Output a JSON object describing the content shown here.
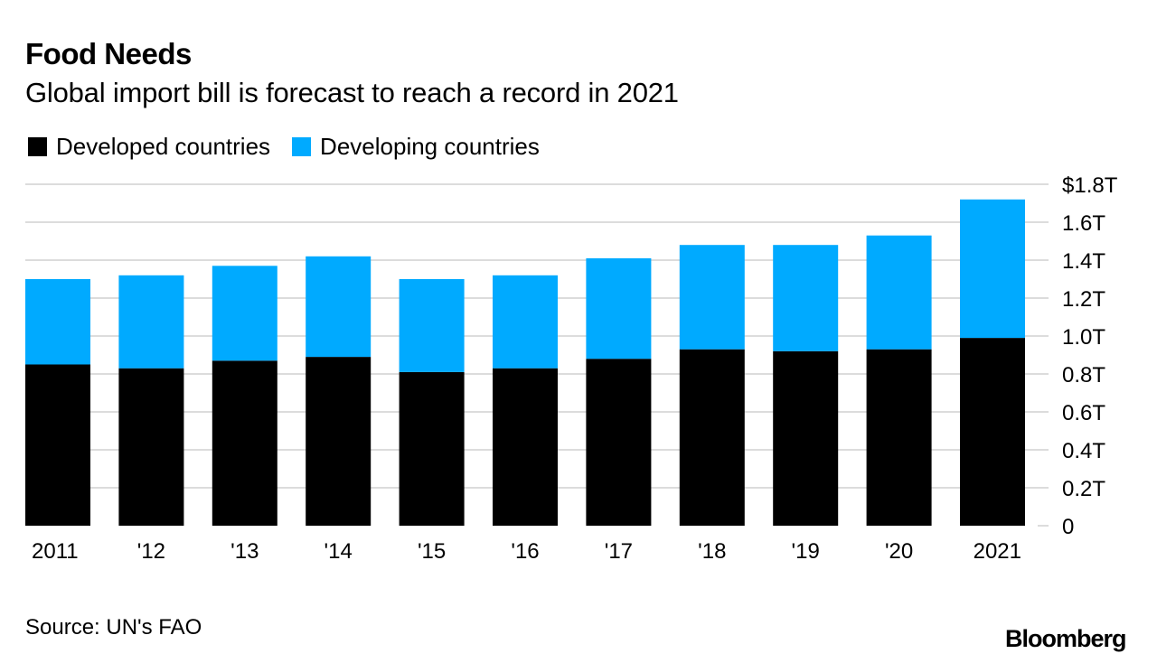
{
  "chart_data": {
    "type": "bar",
    "stacked": true,
    "title": "Food Needs",
    "subtitle": "Global import bill is forecast to reach a record in 2021",
    "xlabel": "",
    "ylabel": "",
    "categories": [
      "2011",
      "'12",
      "'13",
      "'14",
      "'15",
      "'16",
      "'17",
      "'18",
      "'19",
      "'20",
      "2021"
    ],
    "series": [
      {
        "name": "Developed countries",
        "color": "#000000",
        "values": [
          0.85,
          0.83,
          0.87,
          0.89,
          0.81,
          0.83,
          0.88,
          0.93,
          0.92,
          0.93,
          0.99
        ]
      },
      {
        "name": "Developing countries",
        "color": "#00AAFF",
        "values": [
          0.45,
          0.49,
          0.5,
          0.53,
          0.49,
          0.49,
          0.53,
          0.55,
          0.56,
          0.6,
          0.73
        ]
      }
    ],
    "totals": [
      1.3,
      1.32,
      1.37,
      1.42,
      1.3,
      1.32,
      1.41,
      1.48,
      1.48,
      1.53,
      1.72
    ],
    "units": "trillion USD",
    "ylim": [
      0,
      1.8
    ],
    "yticks": [
      0,
      0.2,
      0.4,
      0.6,
      0.8,
      1.0,
      1.2,
      1.4,
      1.6,
      1.8
    ],
    "ytick_labels": [
      "0",
      "0.2T",
      "0.4T",
      "0.6T",
      "0.8T",
      "1.0T",
      "1.2T",
      "1.4T",
      "1.6T",
      "$1.8T"
    ],
    "y_axis_side": "right",
    "grid": true,
    "legend_position": "top-left"
  },
  "footer": {
    "source": "Source: UN's FAO",
    "brand": "Bloomberg"
  }
}
